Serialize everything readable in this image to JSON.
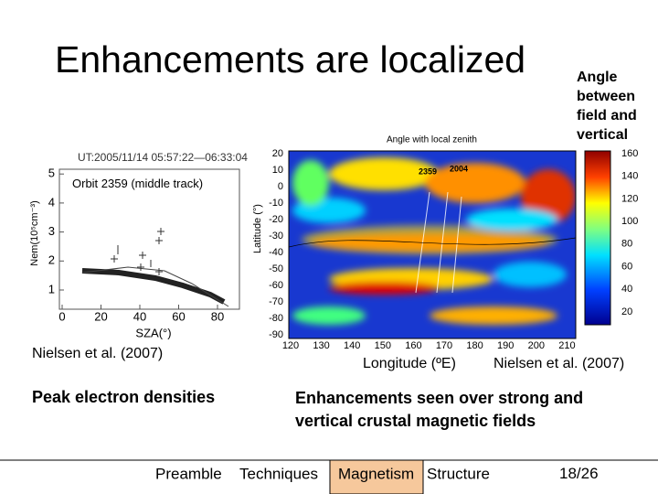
{
  "slide": {
    "title": "Enhancements are localized",
    "side_note": "Angle between field and vertical",
    "left_figure": {
      "header": "UT:2005/11/14 05:57:22—06:33:04",
      "inset_label": "Orbit 2359 (middle track)",
      "y_label": "Nem(10⁵cm⁻³)",
      "y_ticks": [
        1,
        2,
        3,
        4,
        5
      ],
      "x_label": "SZA(°)",
      "x_ticks": [
        0,
        20,
        40,
        60,
        80
      ],
      "citation": "Nielsen et al. (2007)",
      "caption": "Peak electron densities"
    },
    "right_figure": {
      "title": "Angle with local zenith",
      "map_labels": [
        "2359",
        "2004"
      ],
      "y_label": "Latitude (°)",
      "y_ticks": [
        20,
        10,
        0,
        -10,
        -20,
        -30,
        -40,
        -50,
        -60,
        -70,
        -80,
        -90
      ],
      "x_ticks": [
        120,
        130,
        140,
        150,
        160,
        170,
        180,
        190,
        200,
        210
      ],
      "colorbar_ticks": [
        160,
        140,
        120,
        100,
        80,
        60,
        40,
        20
      ],
      "x_label": "Longitude (ºE)",
      "citation": "Nielsen et al. (2007)",
      "caption": "Enhancements seen over strong and vertical crustal magnetic fields"
    },
    "footer": {
      "nav": [
        "Preamble",
        "Techniques",
        "Magnetism",
        "Structure"
      ],
      "active": 2,
      "page": "18/26"
    }
  }
}
